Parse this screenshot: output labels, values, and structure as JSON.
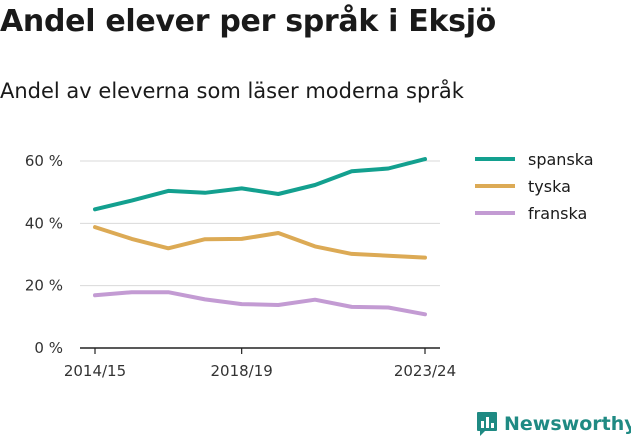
{
  "brand": {
    "name": "Newsworthy",
    "icon": "bar-chart-speech-bubble-icon",
    "color": "#1f8a83"
  },
  "chart_data": {
    "type": "line",
    "title": "Andel elever per språk i Eksjö",
    "subtitle": "Andel av eleverna som läser moderna språk",
    "x": [
      "2014/15",
      "2015/16",
      "2016/17",
      "2017/18",
      "2018/19",
      "2019/20",
      "2020/21",
      "2021/22",
      "2022/23",
      "2023/24"
    ],
    "x_tick_labels": [
      "2014/15",
      "2018/19",
      "2023/24"
    ],
    "y_ticks": [
      0,
      20,
      40,
      60
    ],
    "y_tick_labels": [
      "0 %",
      "20 %",
      "40 %",
      "60 %"
    ],
    "ylim": [
      0,
      60
    ],
    "grid": true,
    "legend_position": "right",
    "series": [
      {
        "name": "spanska",
        "color": "#13a08f",
        "values": [
          44.5,
          47.3,
          50.4,
          49.8,
          51.2,
          49.4,
          52.3,
          56.7,
          57.6,
          60.6
        ]
      },
      {
        "name": "tyska",
        "color": "#dcaa55",
        "values": [
          38.8,
          35.0,
          32.0,
          34.9,
          35.0,
          36.9,
          32.6,
          30.2,
          29.6,
          29.0
        ]
      },
      {
        "name": "franska",
        "color": "#c39bd3",
        "values": [
          16.9,
          17.9,
          17.9,
          15.6,
          14.1,
          13.8,
          15.5,
          13.2,
          13.0,
          10.8
        ]
      }
    ]
  }
}
